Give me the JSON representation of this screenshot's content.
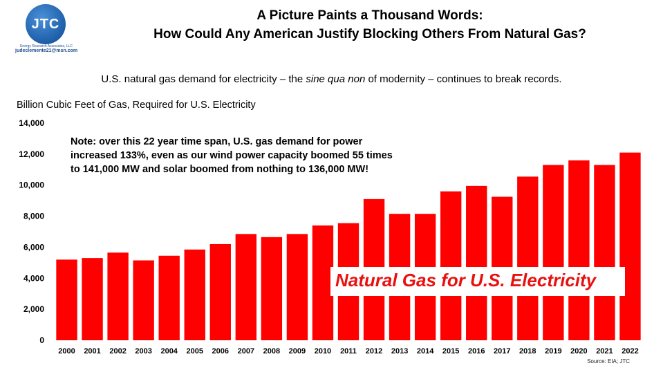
{
  "logo": {
    "text": "JTC",
    "sub": "Energy Research Associates, LLC",
    "email": "judeclemente21@msn.com"
  },
  "header": {
    "title_line1": "A Picture Paints a Thousand Words:",
    "title_line2": "How Could Any American Justify Blocking Others From Natural Gas?"
  },
  "subtitle": {
    "before": "U.S. natural gas demand for electricity – the ",
    "italic": "sine qua non",
    "after": " of modernity – continues to break records."
  },
  "note_lines": [
    "Note: over this 22 year time span, U.S. gas demand for power",
    "increased 133%, even as our wind power capacity boomed 55 times",
    "to 141,000 MW and solar boomed from nothing to 136,000 MW!"
  ],
  "source": "Source: EIA; JTC",
  "colors": {
    "bar": "#ff0000",
    "label": "#e8110f"
  },
  "chart_data": {
    "type": "bar",
    "title": "",
    "ylabel": "Billion Cubic Feet of Gas, Required for U.S. Electricity",
    "xlabel": "",
    "series_label": "Natural Gas for U.S. Electricity",
    "ylim": [
      0,
      14000
    ],
    "yticks": [
      0,
      2000,
      4000,
      6000,
      8000,
      10000,
      12000,
      14000
    ],
    "ytick_labels": [
      "0",
      "2,000",
      "4,000",
      "6,000",
      "8,000",
      "10,000",
      "12,000",
      "14,000"
    ],
    "categories": [
      "2000",
      "2001",
      "2002",
      "2003",
      "2004",
      "2005",
      "2006",
      "2007",
      "2008",
      "2009",
      "2010",
      "2011",
      "2012",
      "2013",
      "2014",
      "2015",
      "2016",
      "2017",
      "2018",
      "2019",
      "2020",
      "2021",
      "2022"
    ],
    "values": [
      5200,
      5300,
      5650,
      5150,
      5450,
      5850,
      6200,
      6850,
      6650,
      6850,
      7400,
      7550,
      9100,
      8150,
      8150,
      9600,
      9950,
      9250,
      10550,
      11300,
      11600,
      11300,
      12100
    ],
    "grid": false,
    "legend": "none"
  }
}
